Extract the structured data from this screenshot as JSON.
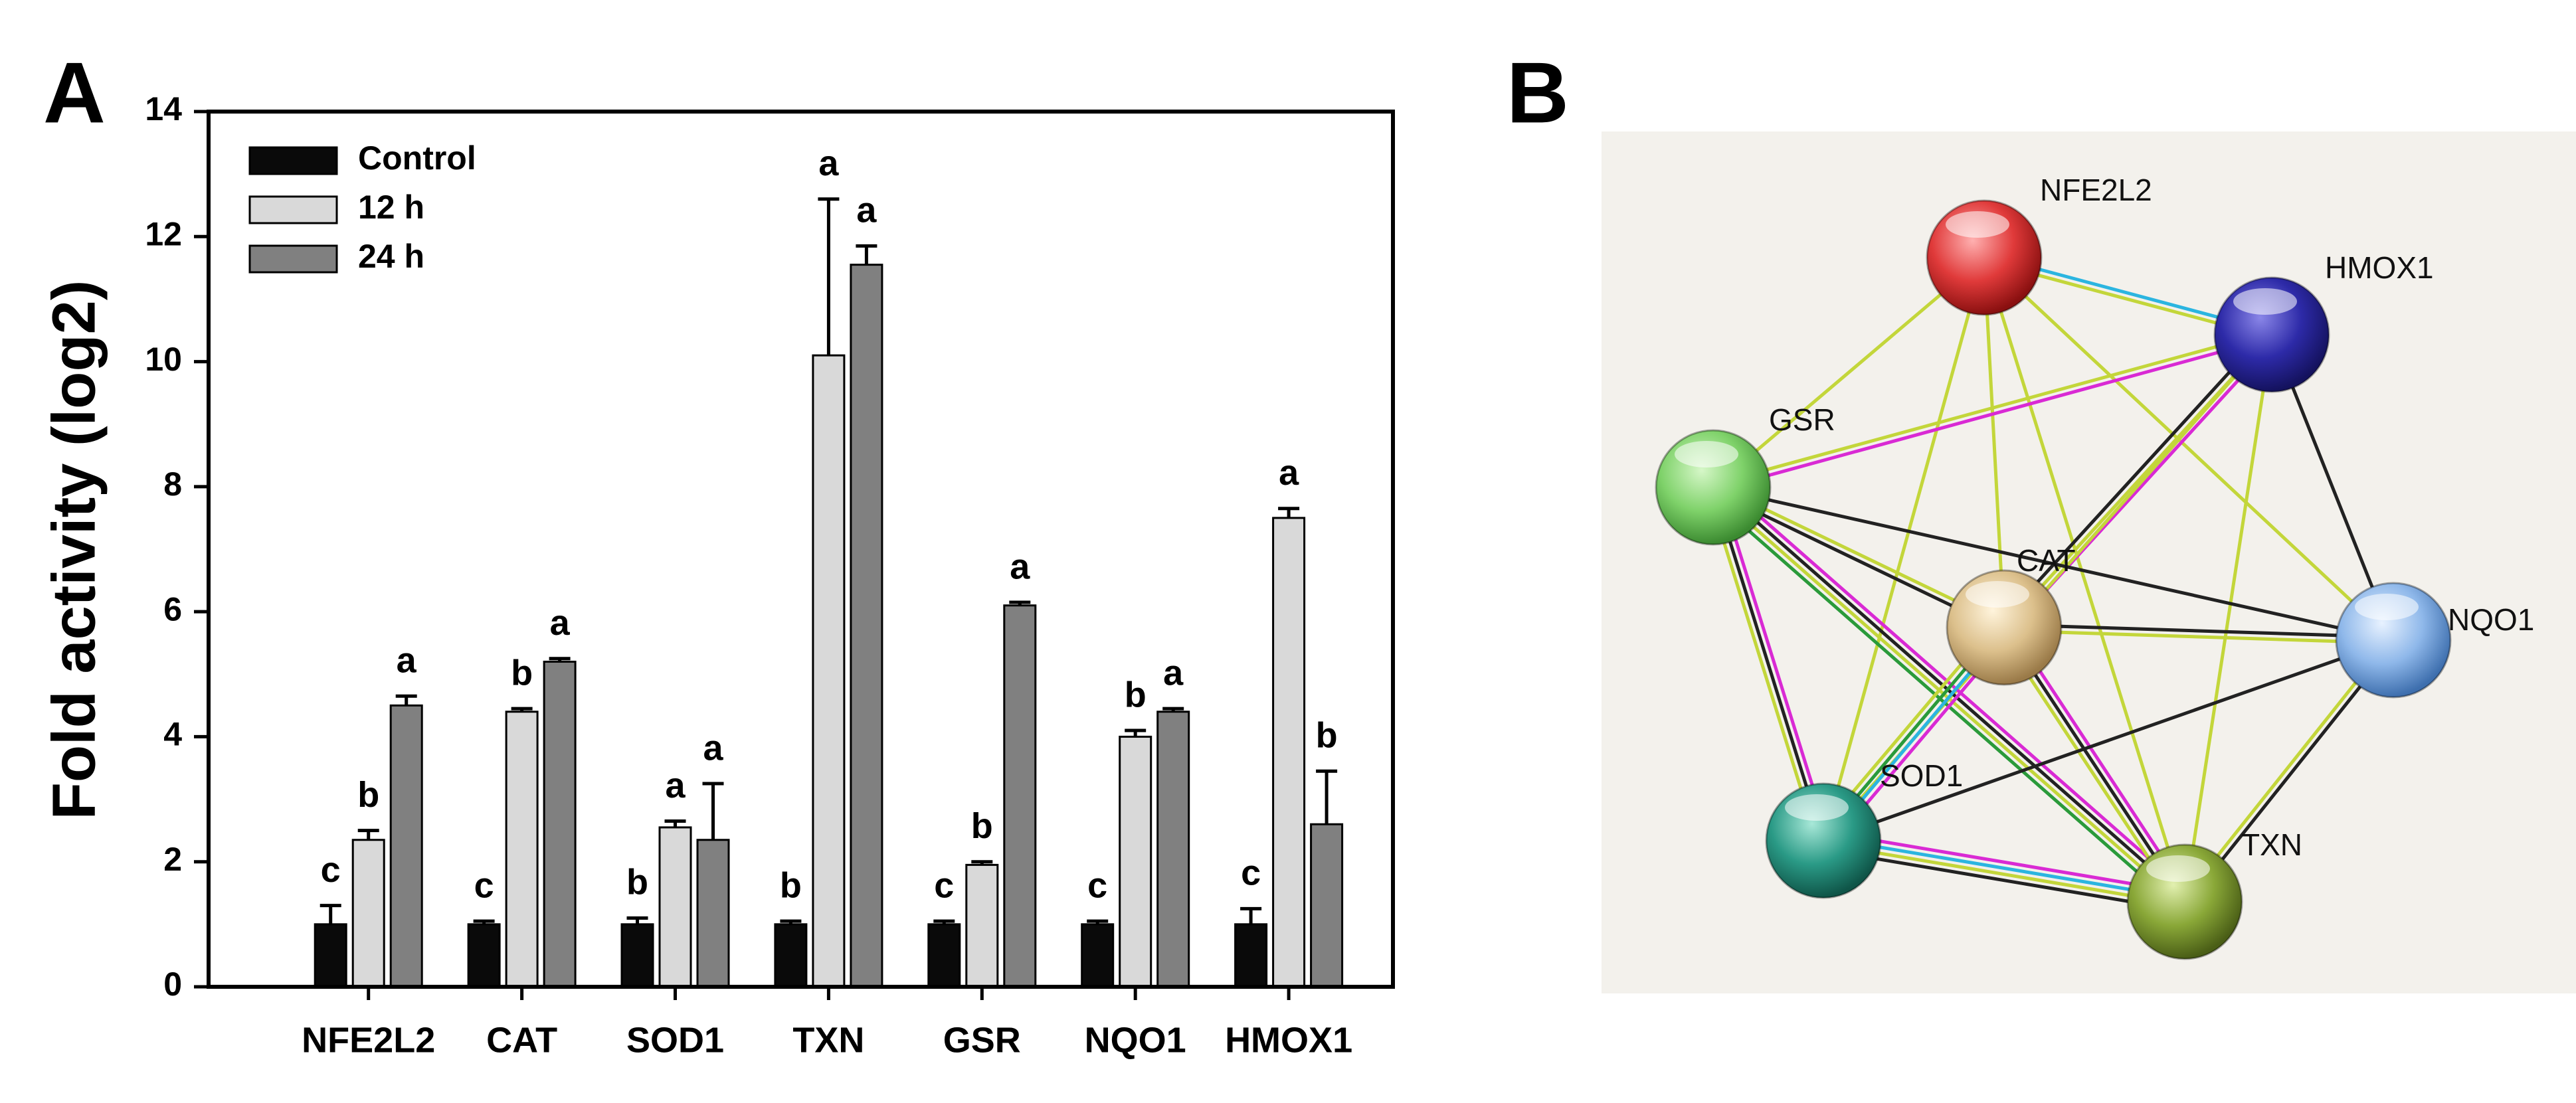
{
  "panels": [
    "A",
    "B"
  ],
  "chart_data": {
    "type": "bar",
    "ylabel": "Fold activity (log2)",
    "categories": [
      "NFE2L2",
      "CAT",
      "SOD1",
      "TXN",
      "GSR",
      "NQO1",
      "HMOX1"
    ],
    "series": [
      {
        "name": "Control",
        "color": "#0a0a0a",
        "values": [
          1.0,
          1.0,
          1.0,
          1.0,
          1.0,
          1.0,
          1.0
        ],
        "errors": [
          0.3,
          0.05,
          0.1,
          0.05,
          0.05,
          0.05,
          0.25
        ],
        "letters": [
          "c",
          "c",
          "b",
          "b",
          "c",
          "c",
          "c"
        ]
      },
      {
        "name": "12 h",
        "color": "#d9d9d9",
        "values": [
          2.35,
          4.4,
          2.55,
          10.1,
          1.95,
          4.0,
          7.5
        ],
        "errors": [
          0.15,
          0.05,
          0.1,
          2.5,
          0.05,
          0.1,
          0.15
        ],
        "letters": [
          "b",
          "b",
          "a",
          "a",
          "b",
          "b",
          "a"
        ]
      },
      {
        "name": "24 h",
        "color": "#808080",
        "values": [
          4.5,
          5.2,
          2.35,
          11.55,
          6.1,
          4.4,
          2.6
        ],
        "errors": [
          0.15,
          0.05,
          0.9,
          0.3,
          0.05,
          0.05,
          0.85
        ],
        "letters": [
          "a",
          "a",
          "a",
          "a",
          "a",
          "a",
          "b"
        ]
      }
    ],
    "ylim": [
      0,
      14
    ],
    "yticks": [
      0,
      2,
      4,
      6,
      8,
      10,
      12,
      14
    ],
    "legend": "upper left"
  },
  "network": {
    "nodes": [
      {
        "label": "NFE2L2"
      },
      {
        "label": "HMOX1"
      },
      {
        "label": "GSR"
      },
      {
        "label": "CAT"
      },
      {
        "label": "NQO1"
      },
      {
        "label": "SOD1"
      },
      {
        "label": "TXN"
      }
    ]
  }
}
